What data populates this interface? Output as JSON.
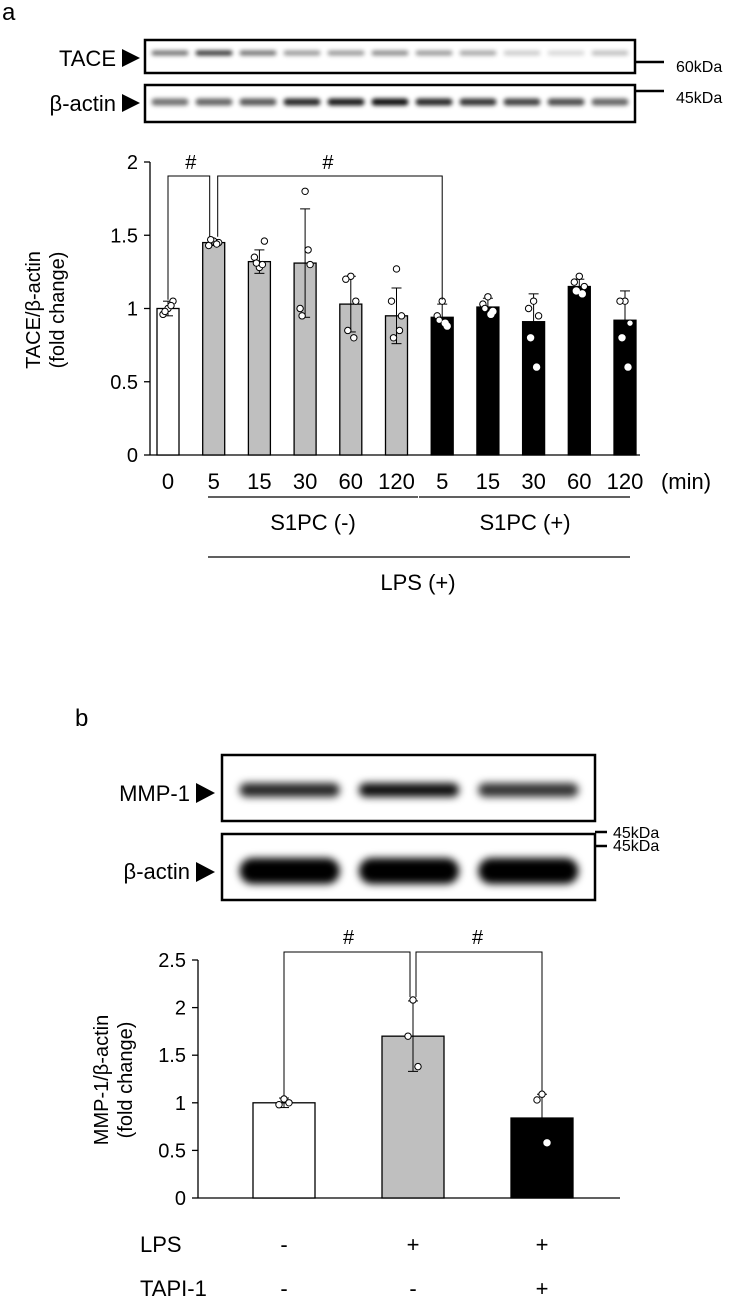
{
  "panels": [
    {
      "panel_label": "a",
      "blot": {
        "rows": [
          {
            "label": "TACE",
            "marker": "60kDa"
          },
          {
            "label": "β-actin",
            "marker": "45kDa"
          }
        ]
      },
      "chart_data": {
        "type": "bar",
        "ylabel_line1": "TACE/β-actin",
        "ylabel_line2": "(fold change)",
        "ylim": [
          0,
          2
        ],
        "yticks": [
          "0",
          "0.5",
          "1",
          "1.5",
          "2"
        ],
        "categories": [
          "0",
          "5",
          "15",
          "30",
          "60",
          "120",
          "5",
          "15",
          "30",
          "60",
          "120"
        ],
        "x_unit": "(min)",
        "values": [
          1.0,
          1.45,
          1.32,
          1.31,
          1.03,
          0.95,
          0.94,
          1.01,
          0.91,
          1.15,
          0.92
        ],
        "errors": [
          0.05,
          0.02,
          0.08,
          0.37,
          0.19,
          0.19,
          0.09,
          0.06,
          0.19,
          0.05,
          0.2
        ],
        "fill_colors": [
          "#ffffff",
          "#bfbfbf",
          "#bfbfbf",
          "#bfbfbf",
          "#bfbfbf",
          "#bfbfbf",
          "#000000",
          "#000000",
          "#000000",
          "#000000",
          "#000000"
        ],
        "points": [
          [
            1.0,
            0.96,
            1.05,
            0.98,
            1.02
          ],
          [
            1.46,
            1.43,
            1.45,
            1.47,
            1.44
          ],
          [
            1.28,
            1.35,
            1.46,
            1.31,
            1.3
          ],
          [
            1.8,
            1.0,
            1.3,
            0.95,
            1.4
          ],
          [
            1.22,
            1.2,
            1.05,
            0.85,
            0.8
          ],
          [
            1.27,
            1.05,
            0.95,
            0.8,
            0.85
          ],
          [
            1.05,
            0.95,
            0.88,
            0.92,
            0.9
          ],
          [
            1.08,
            1.03,
            0.98,
            1.0,
            0.96
          ],
          [
            1.05,
            1.0,
            0.95,
            0.8,
            0.6
          ],
          [
            1.22,
            1.18,
            1.15,
            1.12,
            1.1
          ],
          [
            1.05,
            1.05,
            0.9,
            0.8,
            0.6
          ]
        ],
        "group_labels": [
          "S1PC (-)",
          "S1PC (+)"
        ],
        "outer_label": "LPS (+)",
        "significance": [
          {
            "from": 0,
            "to": 1,
            "label": "#"
          },
          {
            "from": 1,
            "to": 6,
            "label": "#"
          }
        ],
        "grid": false,
        "legend": "none"
      }
    },
    {
      "panel_label": "b",
      "blot": {
        "rows": [
          {
            "label": "MMP-1",
            "marker": "45kDa"
          },
          {
            "label": "β-actin",
            "marker": "45kDa"
          }
        ]
      },
      "chart_data": {
        "type": "bar",
        "ylabel_line1": "MMP-1/β-actin",
        "ylabel_line2": "(fold change)",
        "ylim": [
          0,
          2.5
        ],
        "yticks": [
          "0",
          "0.5",
          "1",
          "1.5",
          "2",
          "2.5"
        ],
        "categories": [
          "",
          "",
          ""
        ],
        "values": [
          1.0,
          1.7,
          0.84
        ],
        "errors": [
          0.05,
          0.37,
          0.25
        ],
        "fill_colors": [
          "#ffffff",
          "#bfbfbf",
          "#000000"
        ],
        "points": [
          [
            1.04,
            0.98,
            1.0
          ],
          [
            2.08,
            1.7,
            1.38
          ],
          [
            1.09,
            1.03,
            0.58
          ]
        ],
        "significance": [
          {
            "from": 0,
            "to": 1,
            "label": "#"
          },
          {
            "from": 1,
            "to": 2,
            "label": "#"
          }
        ],
        "condition_rows": [
          {
            "label": "LPS",
            "marks": [
              "-",
              "+",
              "+"
            ]
          },
          {
            "label": "TAPI-1",
            "marks": [
              "-",
              "-",
              "+"
            ]
          }
        ],
        "grid": false,
        "legend": "none"
      }
    }
  ]
}
